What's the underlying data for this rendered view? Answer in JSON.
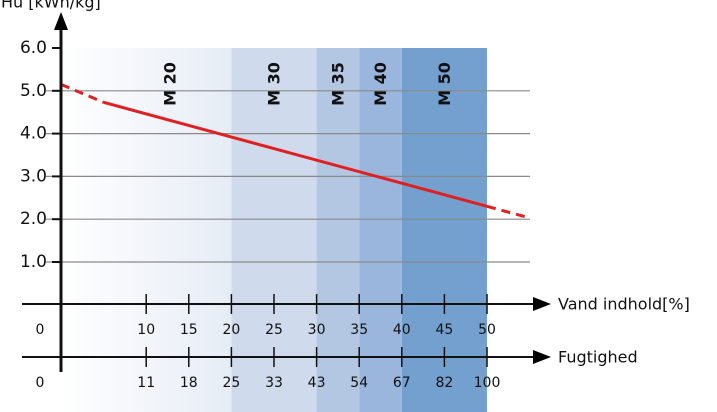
{
  "chart_data": {
    "type": "line",
    "ylabel": "Hu [kWh/kg]",
    "xlabel": "Vand indhold[%]",
    "x2label": "Fugtighed",
    "ylim": [
      0,
      6
    ],
    "xlim": [
      0,
      55
    ],
    "yticks": [
      "1.0",
      "2.0",
      "3.0",
      "4.0",
      "5.0",
      "6.0"
    ],
    "xticks": [
      {
        "value": 10,
        "label": "10"
      },
      {
        "value": 15,
        "label": "15"
      },
      {
        "value": 20,
        "label": "20"
      },
      {
        "value": 25,
        "label": "25"
      },
      {
        "value": 30,
        "label": "30"
      },
      {
        "value": 35,
        "label": "35"
      },
      {
        "value": 40,
        "label": "40"
      },
      {
        "value": 45,
        "label": "45"
      },
      {
        "value": 50,
        "label": "50"
      }
    ],
    "x2ticks": [
      {
        "value": 10,
        "label": "11"
      },
      {
        "value": 15,
        "label": "18"
      },
      {
        "value": 20,
        "label": "25"
      },
      {
        "value": 25,
        "label": "33"
      },
      {
        "value": 30,
        "label": "43"
      },
      {
        "value": 35,
        "label": "54"
      },
      {
        "value": 40,
        "label": "67"
      },
      {
        "value": 45,
        "label": "82"
      },
      {
        "value": 50,
        "label": "100"
      }
    ],
    "origin_label": "0",
    "origin_label_2": "0",
    "zones": [
      {
        "label": "M 20",
        "from": 0,
        "to": 20,
        "color": "#f6f8fc"
      },
      {
        "label": "M 30",
        "from": 20,
        "to": 30,
        "color": "#cfdbed"
      },
      {
        "label": "M 35",
        "from": 30,
        "to": 35,
        "color": "#b3c7e3"
      },
      {
        "label": "M 40",
        "from": 35,
        "to": 40,
        "color": "#9ab6dc"
      },
      {
        "label": "M 50",
        "from": 40,
        "to": 50,
        "color": "#74a0d0"
      }
    ],
    "series": [
      {
        "color": "#e02020",
        "solid": [
          {
            "x": 5,
            "y": 4.73
          },
          {
            "x": 50,
            "y": 2.3
          }
        ],
        "dashed_start": [
          {
            "x": 0,
            "y": 5.15
          },
          {
            "x": 5,
            "y": 4.73
          }
        ],
        "dashed_end": [
          {
            "x": 50,
            "y": 2.3
          },
          {
            "x": 55,
            "y": 2.03
          }
        ]
      }
    ]
  }
}
